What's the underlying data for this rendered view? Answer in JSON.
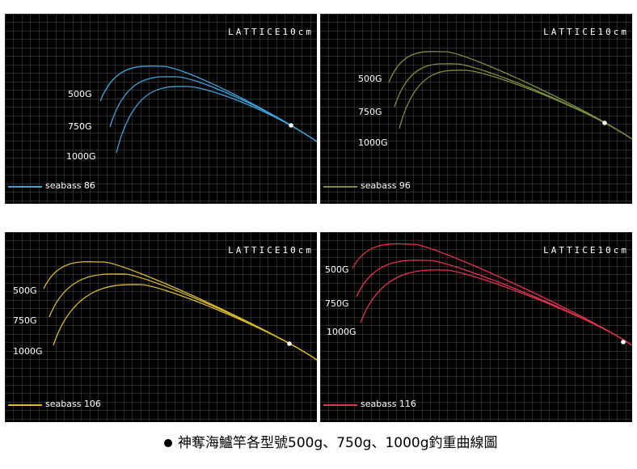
{
  "panels": [
    {
      "lattice": "LATTICE10cm",
      "weights": [
        "500G",
        "750G",
        "1000G"
      ],
      "legend": "seabass 86",
      "color": "#3fa3dc"
    },
    {
      "lattice": "LATTICE10cm",
      "weights": [
        "500G",
        "750G",
        "1000G"
      ],
      "legend": "seabass 96",
      "color": "#7c8f3c"
    },
    {
      "lattice": "LATTICE10cm",
      "weights": [
        "500G",
        "750G",
        "1000G"
      ],
      "legend": "seabass 106",
      "color": "#d9b92e"
    },
    {
      "lattice": "LATTICE10cm",
      "weights": [
        "500G",
        "750G",
        "1000G"
      ],
      "legend": "seabass 116",
      "color": "#e0344f"
    }
  ],
  "caption": "神奪海鱸竿各型號500g、750g、1000g釣重曲線圖"
}
